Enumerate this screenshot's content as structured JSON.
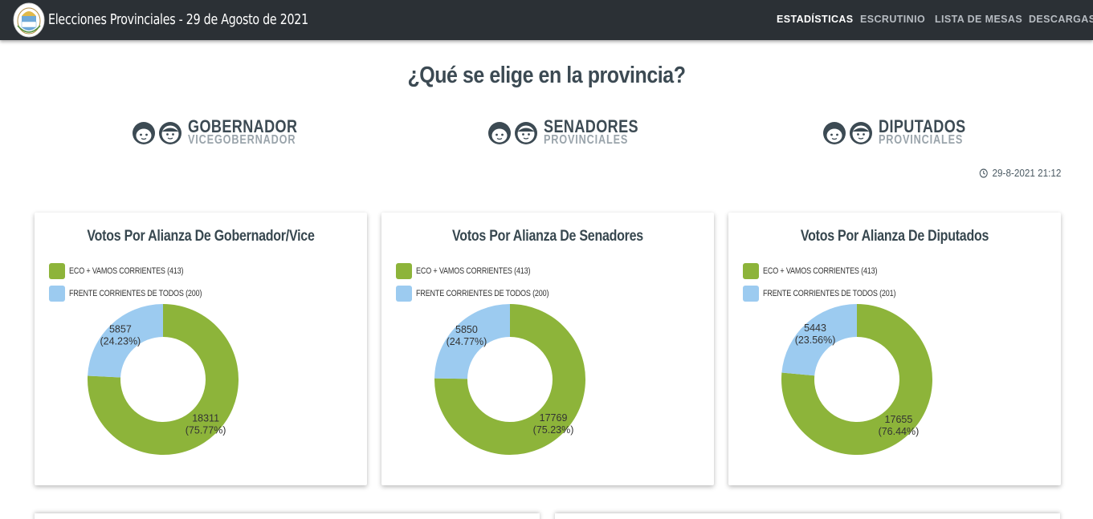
{
  "navbar": {
    "title": "Elecciones Provinciales - 29 de Agosto de 2021",
    "links": [
      {
        "label": "ESTADÍSTICAS",
        "active": true
      },
      {
        "label": "ESCRUTINIO",
        "active": false
      },
      {
        "label": "LISTA DE MESAS",
        "active": false
      },
      {
        "label": "DESCARGAS",
        "active": false
      }
    ]
  },
  "page_title": "¿Qué se elige en la provincia?",
  "offices": [
    {
      "title": "GOBERNADOR",
      "subtitle": "VICEGOBERNADOR"
    },
    {
      "title": "SENADORES",
      "subtitle": "PROVINCIALES"
    },
    {
      "title": "DIPUTADOS",
      "subtitle": "PROVINCIALES"
    }
  ],
  "timestamp": "29-8-2021 21:12",
  "colors": {
    "green": "#8db43a",
    "blue": "#9ccbf0",
    "navbar": "#2b3035"
  },
  "chart_data": [
    {
      "type": "pie",
      "title": "Votos Por Alianza De Gobernador/Vice",
      "legend": [
        "ECO + VAMOS CORRIENTES (413)",
        "FRENTE CORRIENTES DE TODOS (200)"
      ],
      "series": [
        {
          "name": "ECO + VAMOS CORRIENTES (413)",
          "value": 18311,
          "label": "18311",
          "pct": "(75.77%)",
          "color": "#8db43a"
        },
        {
          "name": "FRENTE CORRIENTES DE TODOS (200)",
          "value": 5857,
          "label": "5857",
          "pct": "(24.23%)",
          "color": "#9ccbf0"
        }
      ]
    },
    {
      "type": "pie",
      "title": "Votos Por Alianza De Senadores",
      "legend": [
        "ECO + VAMOS CORRIENTES (413)",
        "FRENTE CORRIENTES DE TODOS (200)"
      ],
      "series": [
        {
          "name": "ECO + VAMOS CORRIENTES (413)",
          "value": 17769,
          "label": "17769",
          "pct": "(75.23%)",
          "color": "#8db43a"
        },
        {
          "name": "FRENTE CORRIENTES DE TODOS (200)",
          "value": 5850,
          "label": "5850",
          "pct": "(24.77%)",
          "color": "#9ccbf0"
        }
      ]
    },
    {
      "type": "pie",
      "title": "Votos Por Alianza De Diputados",
      "legend": [
        "ECO + VAMOS CORRIENTES (413)",
        "FRENTE CORRIENTES DE TODOS (201)"
      ],
      "series": [
        {
          "name": "ECO + VAMOS CORRIENTES (413)",
          "value": 17655,
          "label": "17655",
          "pct": "(76.44%)",
          "color": "#8db43a"
        },
        {
          "name": "FRENTE CORRIENTES DE TODOS (201)",
          "value": 5443,
          "label": "5443",
          "pct": "(23.56%)",
          "color": "#9ccbf0"
        }
      ]
    }
  ]
}
